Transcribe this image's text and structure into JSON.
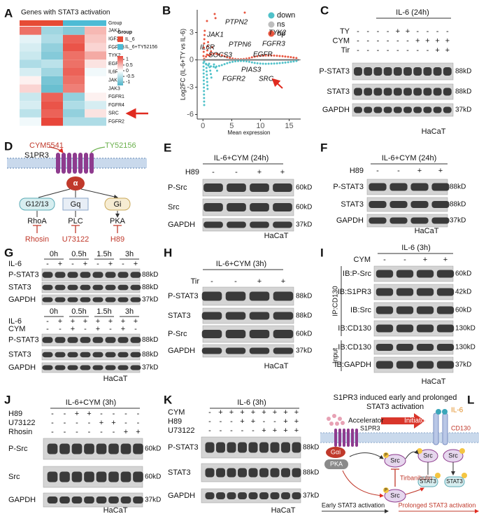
{
  "panel_labels": [
    "A",
    "B",
    "C",
    "D",
    "E",
    "F",
    "G",
    "H",
    "I",
    "J",
    "K",
    "L"
  ],
  "A": {
    "title": "Genes with STAT3 activation",
    "group_label": "Group",
    "legend_title": "Group",
    "groups": [
      {
        "name": "IL_6",
        "color": "#e64b35"
      },
      {
        "name": "IL_6+TY52156",
        "color": "#4dbbd5"
      }
    ],
    "genes": [
      "JAK1",
      "IGF2R",
      "FGFR3",
      "TYK2",
      "EGFR",
      "IL6R",
      "JAK2",
      "JAK3",
      "FGFR1",
      "FGFR4",
      "SRC",
      "FGFR2"
    ],
    "values": [
      [
        1.0,
        -0.7,
        -0.9,
        0.5
      ],
      [
        -0.2,
        -0.6,
        1.1,
        0.4
      ],
      [
        -0.3,
        -0.8,
        1.2,
        0.3
      ],
      [
        -0.4,
        -0.9,
        1.0,
        0.6
      ],
      [
        -0.6,
        -0.5,
        1.0,
        0.2
      ],
      [
        -0.3,
        -0.7,
        1.1,
        -0.1
      ],
      [
        0.1,
        -1.0,
        1.0,
        0.0
      ],
      [
        0.3,
        -1.1,
        0.9,
        0.0
      ],
      [
        -0.4,
        1.1,
        -0.8,
        0.1
      ],
      [
        -0.3,
        1.2,
        -0.6,
        -0.3
      ],
      [
        -0.5,
        1.1,
        -0.8,
        0.2
      ],
      [
        -0.1,
        1.3,
        -0.6,
        -0.6
      ]
    ],
    "scale_ticks": [
      1,
      0.5,
      0,
      -0.5,
      -1
    ],
    "zlim": [
      -1.3,
      1.3
    ],
    "colorscale": {
      "low": "#4fb3c8",
      "mid": "#ffffff",
      "high": "#e8463a"
    }
  },
  "B": {
    "type": "scatter",
    "ylabel": "Log2FC (IL-6+TY vs IL-6)",
    "xlabel": "Mean expression",
    "xlim": [
      -1,
      17
    ],
    "ylim": [
      -6.5,
      5.5
    ],
    "xticks": [
      0,
      5,
      10,
      15
    ],
    "yticks": [
      -6,
      -3,
      0,
      3
    ],
    "legend": [
      {
        "name": "down",
        "color": "#4fc1c9"
      },
      {
        "name": "ns",
        "color": "#bdbdbd"
      },
      {
        "name": "up",
        "color": "#e8553f"
      }
    ],
    "genes": [
      "PTPN2",
      "JAK1",
      "TYK2",
      "PTPN6",
      "FGFR3",
      "IL6R",
      "SOCS3",
      "EGFR",
      "PIAS3",
      "FGFR2",
      "SRC"
    ]
  },
  "C": {
    "header": "IL-6 (24h)",
    "conditions": [
      {
        "label": "TY",
        "signs": [
          "-",
          "-",
          "-",
          "-",
          "+",
          "+",
          "-",
          "-",
          "-",
          "-"
        ]
      },
      {
        "label": "CYM",
        "signs": [
          "-",
          "-",
          "-",
          "-",
          "-",
          "-",
          "+",
          "+",
          "+",
          "+"
        ]
      },
      {
        "label": "Tir",
        "signs": [
          "-",
          "-",
          "-",
          "-",
          "-",
          "-",
          "-",
          "-",
          "+",
          "+"
        ]
      }
    ],
    "bands": [
      {
        "label": "P-STAT3",
        "kd": "88kD"
      },
      {
        "label": "STAT3",
        "kd": "88kD"
      },
      {
        "label": "GAPDH",
        "kd": "37kD"
      }
    ],
    "cell": "HaCaT"
  },
  "D": {
    "ligands": [
      "CYM5541",
      "TY52156"
    ],
    "receptor": "S1PR3",
    "alpha": "α",
    "gproteins": [
      "G12/13",
      "Gq",
      "Gi"
    ],
    "effectors": [
      "RhoA",
      "PLC",
      "PKA"
    ],
    "inhibitors": [
      "Rhosin",
      "U73122",
      "H89"
    ]
  },
  "E": {
    "header": "IL-6+CYM (24h)",
    "conditions": [
      {
        "label": "H89",
        "signs": [
          "-",
          "-",
          "+",
          "+"
        ]
      }
    ],
    "bands": [
      {
        "label": "P-Src",
        "kd": "60kD"
      },
      {
        "label": "Src",
        "kd": "60kD"
      },
      {
        "label": "GAPDH",
        "kd": "37kD"
      }
    ],
    "cell": "HaCaT"
  },
  "F": {
    "header": "IL-6+CYM (24h)",
    "conditions": [
      {
        "label": "H89",
        "signs": [
          "-",
          "-",
          "+",
          "+"
        ]
      }
    ],
    "bands": [
      {
        "label": "P-STAT3",
        "kd": "88kD"
      },
      {
        "label": "STAT3",
        "kd": "88kD"
      },
      {
        "label": "GAPDH",
        "kd": "37kD"
      }
    ],
    "cell": "HaCaT"
  },
  "G": {
    "blots": [
      {
        "time_points": [
          "0h",
          "0.5h",
          "1.5h",
          "3h"
        ],
        "conditions": [
          {
            "label": "IL-6",
            "signs": [
              "-",
              "+",
              "-",
              "+",
              "-",
              "+",
              "-",
              "+"
            ]
          }
        ],
        "bands": [
          {
            "label": "P-STAT3",
            "kd": "88kD"
          },
          {
            "label": "STAT3",
            "kd": "88kD"
          },
          {
            "label": "GAPDH",
            "kd": "37kD"
          }
        ]
      },
      {
        "time_points": [
          "0h",
          "0.5h",
          "1.5h",
          "3h"
        ],
        "conditions": [
          {
            "label": "IL-6",
            "signs": [
              "-",
              "+",
              "+",
              "+",
              "+",
              "+",
              "+",
              "+"
            ]
          },
          {
            "label": "CYM",
            "signs": [
              "-",
              "-",
              "+",
              "-",
              "+",
              "-",
              "+",
              "-"
            ]
          }
        ],
        "bands": [
          {
            "label": "P-STAT3",
            "kd": "88kD"
          },
          {
            "label": "STAT3",
            "kd": "88kD"
          },
          {
            "label": "GAPDH",
            "kd": "37kD"
          }
        ],
        "cell": "HaCaT"
      }
    ]
  },
  "H": {
    "header": "IL-6+CYM (3h)",
    "conditions": [
      {
        "label": "Tir",
        "signs": [
          "-",
          "-",
          "+",
          "+"
        ]
      }
    ],
    "bands": [
      {
        "label": "P-STAT3",
        "kd": "88kD"
      },
      {
        "label": "STAT3",
        "kd": "88kD"
      },
      {
        "label": "P-Src",
        "kd": "60kD"
      },
      {
        "label": "GAPDH",
        "kd": "37kD"
      }
    ],
    "cell": "HaCaT"
  },
  "I": {
    "header": "IL-6  (3h)",
    "conditions": [
      {
        "label": "CYM",
        "signs": [
          "-",
          "-",
          "+",
          "+"
        ]
      }
    ],
    "bands": [
      {
        "label": "IB:P-Src",
        "kd": "60kD"
      },
      {
        "label": "IB:S1PR3",
        "kd": "42kD"
      },
      {
        "label": "IB:Src",
        "kd": "60kD"
      },
      {
        "label": "IB:CD130",
        "kd": "130kD"
      },
      {
        "label": "IB:CD130",
        "kd": "130kD"
      },
      {
        "label": "IB:GAPDH",
        "kd": "37kD"
      }
    ],
    "ip_label": "IP:CD130",
    "input_label": "Input",
    "cell": "HaCaT"
  },
  "J": {
    "header": "IL-6+CYM (3h)",
    "conditions": [
      {
        "label": "H89",
        "signs": [
          "-",
          "-",
          "+",
          "+",
          "-",
          "-",
          "-",
          "-"
        ]
      },
      {
        "label": "U73122",
        "signs": [
          "-",
          "-",
          "-",
          "-",
          "+",
          "+",
          "-",
          "-"
        ]
      },
      {
        "label": "Rhosin",
        "signs": [
          "-",
          "-",
          "-",
          "-",
          "-",
          "-",
          "+",
          "+"
        ]
      }
    ],
    "bands": [
      {
        "label": "P-Src",
        "kd": "60kD"
      },
      {
        "label": "Src",
        "kd": "60kD"
      },
      {
        "label": "GAPDH",
        "kd": "37kD"
      }
    ],
    "cell": "HaCaT"
  },
  "K": {
    "header": "IL-6  (3h)",
    "conditions": [
      {
        "label": "CYM",
        "signs": [
          "-",
          "+",
          "+",
          "+",
          "+",
          "+",
          "+",
          "+",
          "+"
        ]
      },
      {
        "label": "H89",
        "signs": [
          "-",
          "-",
          "-",
          "+",
          "+",
          "-",
          "-",
          "+",
          "+"
        ]
      },
      {
        "label": "U73122",
        "signs": [
          "-",
          "-",
          "-",
          "-",
          "-",
          "+",
          "+",
          "+",
          "+"
        ]
      }
    ],
    "bands": [
      {
        "label": "P-STAT3",
        "kd": "88kD"
      },
      {
        "label": "STAT3",
        "kd": "88kD"
      },
      {
        "label": "GAPDH",
        "kd": "37kD"
      }
    ],
    "cell": "HaCaT"
  },
  "L": {
    "title": [
      "S1PR3 induced early and prolonged",
      "STAT3 activation"
    ],
    "accelerator": "Accelerator",
    "initiator": "Initiator",
    "il6": "IL-6",
    "s1pr3": "S1PR3",
    "cd130": "CD130",
    "gai": "Gαi",
    "pka": "PKA",
    "src": "Src",
    "phospho": "P",
    "tirbanibulin": "Tirbanibulin",
    "stat3": "STAT3",
    "early": "Early STAT3 activation",
    "prolonged": "Prolonged STAT3 activation"
  }
}
